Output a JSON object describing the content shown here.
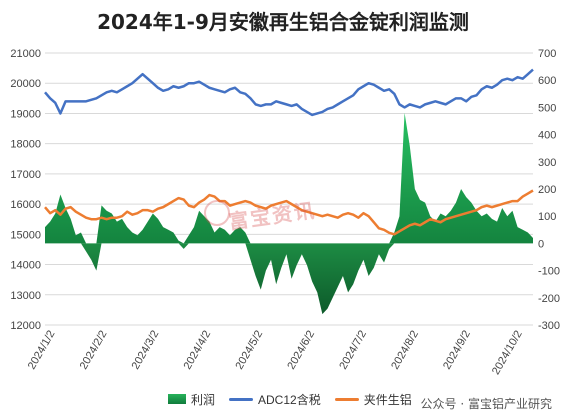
{
  "chart_data": {
    "type": "line+area",
    "title": "2024年1-9月安徽再生铝合金锭利润监测",
    "x": [
      "2024/1/2",
      "2024/2/2",
      "2024/3/2",
      "2024/4/2",
      "2024/5/2",
      "2024/6/2",
      "2024/7/2",
      "2024/8/2",
      "2024/9/2",
      "2024/10/2"
    ],
    "ylim_left": [
      12000,
      21000
    ],
    "yticks_left": [
      12000,
      13000,
      14000,
      15000,
      16000,
      17000,
      18000,
      19000,
      20000,
      21000
    ],
    "ylim_right": [
      -300,
      700
    ],
    "yticks_right": [
      -300,
      -200,
      -100,
      0,
      100,
      200,
      300,
      400,
      500,
      600,
      700
    ],
    "grid": true,
    "legend_position": "bottom",
    "series": [
      {
        "name": "利润",
        "axis": "right",
        "style": "area",
        "color": "#1f9e4b",
        "values": [
          [
            0,
            60
          ],
          [
            1,
            80
          ],
          [
            2,
            110
          ],
          [
            3,
            180
          ],
          [
            4,
            130
          ],
          [
            5,
            90
          ],
          [
            6,
            30
          ],
          [
            7,
            40
          ],
          [
            8,
            -30
          ],
          [
            9,
            -60
          ],
          [
            10,
            -100
          ],
          [
            11,
            140
          ],
          [
            12,
            120
          ],
          [
            13,
            110
          ],
          [
            14,
            80
          ],
          [
            15,
            90
          ],
          [
            16,
            60
          ],
          [
            17,
            40
          ],
          [
            18,
            30
          ],
          [
            19,
            50
          ],
          [
            20,
            80
          ],
          [
            21,
            110
          ],
          [
            22,
            90
          ],
          [
            23,
            60
          ],
          [
            24,
            50
          ],
          [
            25,
            40
          ],
          [
            26,
            10
          ],
          [
            27,
            -20
          ],
          [
            28,
            30
          ],
          [
            29,
            60
          ],
          [
            30,
            120
          ],
          [
            31,
            100
          ],
          [
            32,
            80
          ],
          [
            33,
            40
          ],
          [
            34,
            60
          ],
          [
            35,
            50
          ],
          [
            36,
            30
          ],
          [
            37,
            50
          ],
          [
            38,
            60
          ],
          [
            39,
            40
          ],
          [
            40,
            -60
          ],
          [
            41,
            -120
          ],
          [
            42,
            -170
          ],
          [
            43,
            -100
          ],
          [
            44,
            -60
          ],
          [
            45,
            -150
          ],
          [
            46,
            -90
          ],
          [
            47,
            -40
          ],
          [
            48,
            -130
          ],
          [
            49,
            -80
          ],
          [
            50,
            -40
          ],
          [
            51,
            -80
          ],
          [
            52,
            -140
          ],
          [
            53,
            -180
          ],
          [
            54,
            -260
          ],
          [
            55,
            -240
          ],
          [
            56,
            -200
          ],
          [
            57,
            -160
          ],
          [
            58,
            -120
          ],
          [
            59,
            -180
          ],
          [
            60,
            -150
          ],
          [
            61,
            -100
          ],
          [
            62,
            -60
          ],
          [
            63,
            -120
          ],
          [
            64,
            -90
          ],
          [
            65,
            -40
          ],
          [
            66,
            -70
          ],
          [
            67,
            -20
          ],
          [
            68,
            40
          ],
          [
            69,
            100
          ],
          [
            70,
            480
          ],
          [
            71,
            360
          ],
          [
            72,
            200
          ],
          [
            73,
            160
          ],
          [
            74,
            150
          ],
          [
            75,
            100
          ],
          [
            76,
            80
          ],
          [
            77,
            110
          ],
          [
            78,
            100
          ],
          [
            79,
            120
          ],
          [
            80,
            150
          ],
          [
            81,
            200
          ],
          [
            82,
            170
          ],
          [
            83,
            150
          ],
          [
            84,
            120
          ],
          [
            85,
            100
          ],
          [
            86,
            110
          ],
          [
            87,
            90
          ],
          [
            88,
            80
          ],
          [
            89,
            130
          ],
          [
            90,
            100
          ],
          [
            91,
            120
          ],
          [
            92,
            60
          ],
          [
            93,
            50
          ],
          [
            94,
            40
          ],
          [
            95,
            20
          ]
        ]
      },
      {
        "name": "ADC12含税",
        "axis": "left",
        "style": "line",
        "color": "#4472c4",
        "values": [
          [
            0,
            19700
          ],
          [
            1,
            19500
          ],
          [
            2,
            19350
          ],
          [
            3,
            19000
          ],
          [
            4,
            19400
          ],
          [
            5,
            19400
          ],
          [
            6,
            19400
          ],
          [
            7,
            19400
          ],
          [
            8,
            19400
          ],
          [
            9,
            19450
          ],
          [
            10,
            19500
          ],
          [
            11,
            19600
          ],
          [
            12,
            19700
          ],
          [
            13,
            19750
          ],
          [
            14,
            19700
          ],
          [
            15,
            19800
          ],
          [
            16,
            19900
          ],
          [
            17,
            20000
          ],
          [
            18,
            20150
          ],
          [
            19,
            20300
          ],
          [
            20,
            20150
          ],
          [
            21,
            20000
          ],
          [
            22,
            19850
          ],
          [
            23,
            19750
          ],
          [
            24,
            19800
          ],
          [
            25,
            19900
          ],
          [
            26,
            19850
          ],
          [
            27,
            19900
          ],
          [
            28,
            20000
          ],
          [
            29,
            20000
          ],
          [
            30,
            20050
          ],
          [
            31,
            19950
          ],
          [
            32,
            19850
          ],
          [
            33,
            19800
          ],
          [
            34,
            19750
          ],
          [
            35,
            19700
          ],
          [
            36,
            19800
          ],
          [
            37,
            19850
          ],
          [
            38,
            19700
          ],
          [
            39,
            19650
          ],
          [
            40,
            19500
          ],
          [
            41,
            19300
          ],
          [
            42,
            19250
          ],
          [
            43,
            19300
          ],
          [
            44,
            19300
          ],
          [
            45,
            19400
          ],
          [
            46,
            19350
          ],
          [
            47,
            19300
          ],
          [
            48,
            19250
          ],
          [
            49,
            19300
          ],
          [
            50,
            19150
          ],
          [
            51,
            19050
          ],
          [
            52,
            18950
          ],
          [
            53,
            19000
          ],
          [
            54,
            19050
          ],
          [
            55,
            19150
          ],
          [
            56,
            19200
          ],
          [
            57,
            19300
          ],
          [
            58,
            19400
          ],
          [
            59,
            19500
          ],
          [
            60,
            19600
          ],
          [
            61,
            19800
          ],
          [
            62,
            19900
          ],
          [
            63,
            20000
          ],
          [
            64,
            19950
          ],
          [
            65,
            19850
          ],
          [
            66,
            19750
          ],
          [
            67,
            19800
          ],
          [
            68,
            19650
          ],
          [
            69,
            19300
          ],
          [
            70,
            19200
          ],
          [
            71,
            19300
          ],
          [
            72,
            19250
          ],
          [
            73,
            19200
          ],
          [
            74,
            19300
          ],
          [
            75,
            19350
          ],
          [
            76,
            19400
          ],
          [
            77,
            19350
          ],
          [
            78,
            19300
          ],
          [
            79,
            19400
          ],
          [
            80,
            19500
          ],
          [
            81,
            19500
          ],
          [
            82,
            19400
          ],
          [
            83,
            19550
          ],
          [
            84,
            19600
          ],
          [
            85,
            19800
          ],
          [
            86,
            19900
          ],
          [
            87,
            19850
          ],
          [
            88,
            19950
          ],
          [
            89,
            20100
          ],
          [
            90,
            20150
          ],
          [
            91,
            20100
          ],
          [
            92,
            20200
          ],
          [
            93,
            20150
          ],
          [
            94,
            20300
          ],
          [
            95,
            20450
          ]
        ]
      },
      {
        "name": "夹件生铝",
        "axis": "left",
        "style": "line",
        "color": "#ed7d31",
        "values": [
          [
            0,
            15900
          ],
          [
            1,
            15700
          ],
          [
            2,
            15800
          ],
          [
            3,
            15650
          ],
          [
            4,
            15850
          ],
          [
            5,
            15900
          ],
          [
            6,
            15750
          ],
          [
            7,
            15650
          ],
          [
            8,
            15550
          ],
          [
            9,
            15500
          ],
          [
            10,
            15500
          ],
          [
            11,
            15550
          ],
          [
            12,
            15500
          ],
          [
            13,
            15550
          ],
          [
            14,
            15550
          ],
          [
            15,
            15600
          ],
          [
            16,
            15750
          ],
          [
            17,
            15650
          ],
          [
            18,
            15700
          ],
          [
            19,
            15800
          ],
          [
            20,
            15800
          ],
          [
            21,
            15750
          ],
          [
            22,
            15850
          ],
          [
            23,
            15900
          ],
          [
            24,
            16000
          ],
          [
            25,
            16100
          ],
          [
            26,
            16200
          ],
          [
            27,
            16150
          ],
          [
            28,
            15950
          ],
          [
            29,
            15900
          ],
          [
            30,
            16050
          ],
          [
            31,
            16150
          ],
          [
            32,
            16300
          ],
          [
            33,
            16250
          ],
          [
            34,
            16100
          ],
          [
            35,
            16100
          ],
          [
            36,
            15950
          ],
          [
            37,
            16000
          ],
          [
            38,
            16050
          ],
          [
            39,
            16100
          ],
          [
            40,
            16050
          ],
          [
            41,
            15950
          ],
          [
            42,
            15900
          ],
          [
            43,
            15850
          ],
          [
            44,
            15950
          ],
          [
            45,
            16000
          ],
          [
            46,
            16050
          ],
          [
            47,
            16100
          ],
          [
            48,
            16000
          ],
          [
            49,
            15900
          ],
          [
            50,
            15800
          ],
          [
            51,
            15750
          ],
          [
            52,
            15700
          ],
          [
            53,
            15650
          ],
          [
            54,
            15600
          ],
          [
            55,
            15650
          ],
          [
            56,
            15600
          ],
          [
            57,
            15550
          ],
          [
            58,
            15650
          ],
          [
            59,
            15700
          ],
          [
            60,
            15650
          ],
          [
            61,
            15550
          ],
          [
            62,
            15700
          ],
          [
            63,
            15600
          ],
          [
            64,
            15400
          ],
          [
            65,
            15200
          ],
          [
            66,
            15150
          ],
          [
            67,
            15050
          ],
          [
            68,
            15000
          ],
          [
            69,
            15100
          ],
          [
            70,
            15200
          ],
          [
            71,
            15300
          ],
          [
            72,
            15350
          ],
          [
            73,
            15300
          ],
          [
            74,
            15400
          ],
          [
            75,
            15500
          ],
          [
            76,
            15450
          ],
          [
            77,
            15400
          ],
          [
            78,
            15500
          ],
          [
            79,
            15550
          ],
          [
            80,
            15600
          ],
          [
            81,
            15650
          ],
          [
            82,
            15700
          ],
          [
            83,
            15750
          ],
          [
            84,
            15800
          ],
          [
            85,
            15900
          ],
          [
            86,
            15950
          ],
          [
            87,
            15900
          ],
          [
            88,
            15950
          ],
          [
            89,
            16000
          ],
          [
            90,
            16050
          ],
          [
            91,
            16100
          ],
          [
            92,
            16100
          ],
          [
            93,
            16250
          ],
          [
            94,
            16350
          ],
          [
            95,
            16450
          ]
        ]
      }
    ]
  },
  "watermark": {
    "text": "富宝资讯",
    "color": "#d65050"
  },
  "footer": {
    "text": "公众号 · 富宝铝产业研究"
  }
}
